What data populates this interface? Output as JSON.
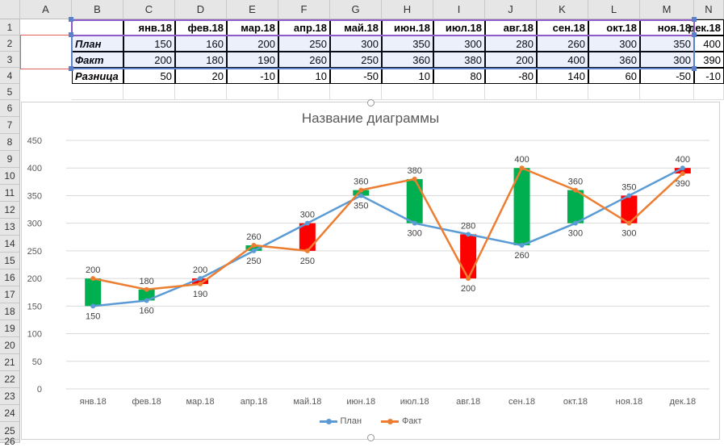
{
  "sheet": {
    "column_letters": [
      "A",
      "B",
      "C",
      "D",
      "E",
      "F",
      "G",
      "H",
      "I",
      "J",
      "K",
      "L",
      "M",
      "N"
    ],
    "row_numbers": [
      "1",
      "2",
      "3",
      "4",
      "5",
      "6",
      "7",
      "8",
      "9",
      "10",
      "11",
      "12",
      "13",
      "14",
      "15",
      "16",
      "17",
      "18",
      "19",
      "20",
      "21",
      "22",
      "23",
      "24",
      "25",
      "26"
    ],
    "months": [
      "янв.18",
      "фев.18",
      "мар.18",
      "апр.18",
      "май.18",
      "июн.18",
      "июл.18",
      "авг.18",
      "сен.18",
      "окт.18",
      "ноя.18",
      "дек.18"
    ],
    "rows": [
      {
        "label": "План",
        "values": [
          "150",
          "160",
          "200",
          "250",
          "300",
          "350",
          "300",
          "280",
          "260",
          "300",
          "350",
          "400"
        ]
      },
      {
        "label": "Факт",
        "values": [
          "200",
          "180",
          "190",
          "260",
          "250",
          "360",
          "380",
          "200",
          "400",
          "360",
          "300",
          "390"
        ]
      },
      {
        "label": "Разница",
        "values": [
          "50",
          "20",
          "-10",
          "10",
          "-50",
          "10",
          "80",
          "-80",
          "140",
          "60",
          "-50",
          "-10"
        ]
      }
    ]
  },
  "chart": {
    "title": "Название диаграммы",
    "legend": [
      {
        "name": "План",
        "color": "#5b9bd5"
      },
      {
        "name": "Факт",
        "color": "#ed7d31"
      }
    ],
    "colors": {
      "up": "#00b050",
      "down": "#ff0000",
      "grid": "#d9d9d9",
      "axis_text": "#595959"
    }
  },
  "chart_data": {
    "type": "line",
    "title": "Название диаграммы",
    "categories": [
      "янв.18",
      "фев.18",
      "мар.18",
      "апр.18",
      "май.18",
      "июн.18",
      "июл.18",
      "авг.18",
      "сен.18",
      "окт.18",
      "ноя.18",
      "дек.18"
    ],
    "series": [
      {
        "name": "План",
        "values": [
          150,
          160,
          200,
          250,
          300,
          350,
          300,
          280,
          260,
          300,
          350,
          400
        ]
      },
      {
        "name": "Факт",
        "values": [
          200,
          180,
          190,
          260,
          250,
          360,
          380,
          200,
          400,
          360,
          300,
          390
        ]
      }
    ],
    "y_ticks": [
      "0",
      "50",
      "100",
      "150",
      "200",
      "250",
      "300",
      "350",
      "400",
      "450"
    ],
    "ylim": [
      0,
      450
    ],
    "xlabel": "",
    "ylabel": "",
    "legend_position": "bottom",
    "up_down_bars": true
  }
}
